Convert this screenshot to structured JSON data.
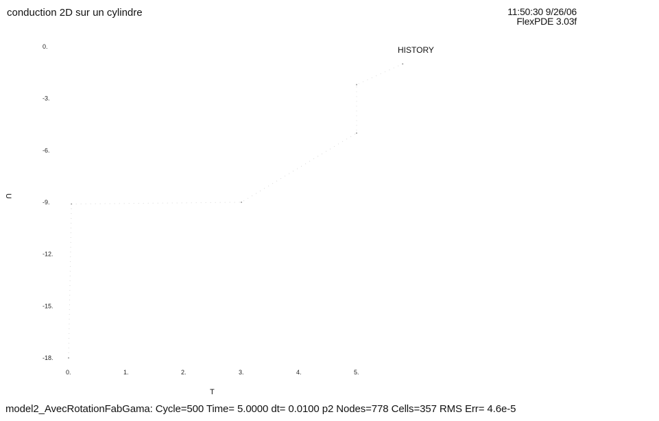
{
  "header": {
    "title": "conduction 2D sur un cylindre",
    "timestamp": "11:50:30 9/26/06",
    "software": "FlexPDE 3.03f"
  },
  "footer": {
    "status": "model2_AvecRotationFabGama:  Cycle=500  Time= 5.0000  dt= 0.0100  p2  Nodes=778 Cells=357 RMS Err= 4.6e-5"
  },
  "chart_data": {
    "type": "line",
    "title": "HISTORY",
    "xlabel": "T",
    "ylabel": "U",
    "xlim": [
      0,
      5
    ],
    "ylim": [
      -18,
      0
    ],
    "x_ticks": [
      "0.",
      "1.",
      "2.",
      "3.",
      "4.",
      "5."
    ],
    "y_ticks": [
      "0.",
      "-3.",
      "-6.",
      "-9.",
      "-12.",
      "-15.",
      "-18."
    ],
    "x_tick_values": [
      0,
      1,
      2,
      3,
      4,
      5
    ],
    "y_tick_values": [
      0,
      -3,
      -6,
      -9,
      -12,
      -15,
      -18
    ],
    "grid": false,
    "series": [
      {
        "color": "#d8d8d8",
        "points": [
          [
            0,
            -18
          ],
          [
            0.05,
            -9.1
          ],
          [
            3.0,
            -9.0
          ],
          [
            5.0,
            -5.0
          ],
          [
            5.0,
            -2.2
          ],
          [
            5.8,
            -1.0
          ]
        ]
      }
    ]
  }
}
